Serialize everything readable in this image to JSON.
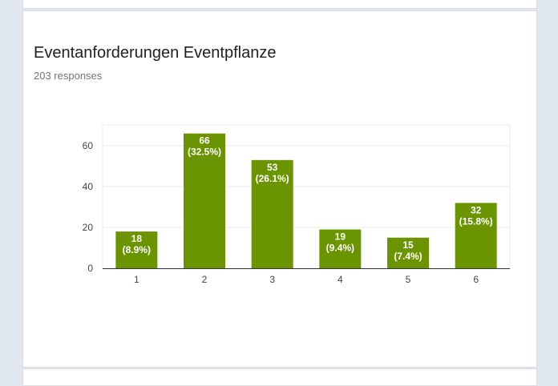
{
  "header": {
    "title": "Eventanforderungen Eventpflanze",
    "responses": "203 responses"
  },
  "colors": {
    "bar": "#6a9500",
    "grid": "#ebebeb",
    "axis": "#333333"
  },
  "chart_data": {
    "type": "bar",
    "title": "Eventanforderungen Eventpflanze",
    "xlabel": "",
    "ylabel": "",
    "categories": [
      "1",
      "2",
      "3",
      "4",
      "5",
      "6"
    ],
    "values": [
      18,
      66,
      53,
      19,
      15,
      32
    ],
    "value_labels": [
      "18",
      "66",
      "53",
      "19",
      "15",
      "32"
    ],
    "percent_labels": [
      "(8.9%)",
      "(32.5%)",
      "(26.1%)",
      "(9.4%)",
      "(7.4%)",
      "(15.8%)"
    ],
    "yticks": [
      0,
      20,
      40,
      60
    ],
    "ylim": [
      0,
      70
    ],
    "grid": true,
    "legend": "none"
  }
}
